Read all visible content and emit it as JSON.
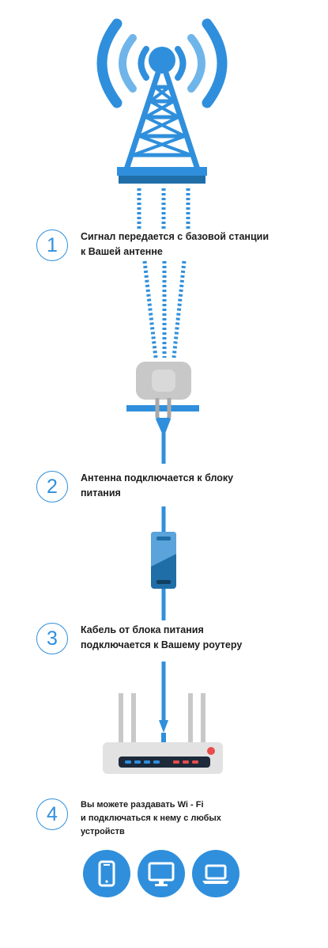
{
  "steps": [
    {
      "number": "1",
      "lines": [
        "Сигнал передается с базовой станции",
        "к Вашей антенне"
      ]
    },
    {
      "number": "2",
      "lines": [
        "Антенна подключается к блоку",
        "питания"
      ]
    },
    {
      "number": "3",
      "lines": [
        "Кабель от блока питания",
        "подключается к Вашему роутеру"
      ]
    },
    {
      "number": "4",
      "lines": [
        "Вы можете раздавать  Wi - Fi",
        "и подключаться к нему с любых",
        "устройств"
      ]
    }
  ],
  "icons": {
    "tower": "cell-tower-icon",
    "antenna": "antenna-icon",
    "power_block": "power-supply-icon",
    "router": "router-icon",
    "devices": [
      "smartphone-icon",
      "monitor-icon",
      "laptop-icon"
    ]
  },
  "colors": {
    "accent": "#2f8fdc",
    "accent_light": "#6fb5ea",
    "dark_blue": "#1f6ea8",
    "gray": "#c8c8c8",
    "router_body": "#e2e2e2",
    "router_panel": "#1d2a3a",
    "led_red": "#e84b4b",
    "text": "#1c1c1c"
  }
}
